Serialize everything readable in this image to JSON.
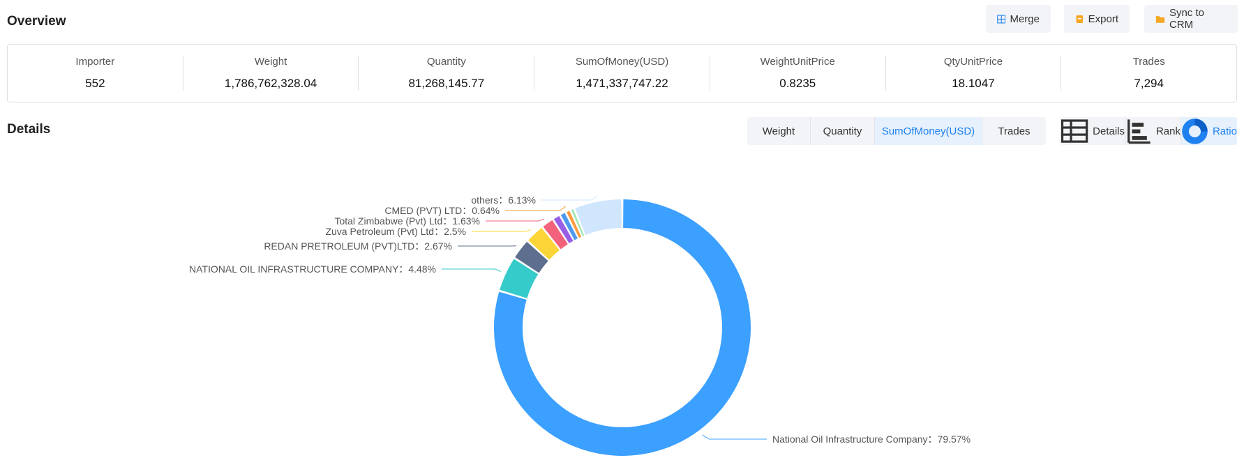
{
  "overview": {
    "title": "Overview",
    "buttons": {
      "merge": "Merge",
      "export": "Export",
      "sync": "Sync to CRM"
    },
    "stats": [
      {
        "label": "Importer",
        "value": "552"
      },
      {
        "label": "Weight",
        "value": "1,786,762,328.04"
      },
      {
        "label": "Quantity",
        "value": "81,268,145.77"
      },
      {
        "label": "SumOfMoney(USD)",
        "value": "1,471,337,747.22"
      },
      {
        "label": "WeightUnitPrice",
        "value": "0.8235"
      },
      {
        "label": "QtyUnitPrice",
        "value": "18.1047"
      },
      {
        "label": "Trades",
        "value": "7,294"
      }
    ]
  },
  "details": {
    "title": "Details",
    "metric_tabs": [
      "Weight",
      "Quantity",
      "SumOfMoney(USD)",
      "Trades"
    ],
    "active_metric": "SumOfMoney(USD)",
    "view_tabs": [
      "Details",
      "Rank",
      "Ratio"
    ],
    "active_view": "Ratio"
  },
  "colors": {
    "accent": "#1f80f0",
    "button_bg": "#f2f4f7",
    "active_bg": "#e6f1fd"
  },
  "chart_data": {
    "type": "pie",
    "donut": true,
    "slices": [
      {
        "name": "National Oil Infrastructure Company",
        "value": 79.57,
        "label": "National Oil Infrastructure Company：79.57%",
        "color": "#3ba0ff"
      },
      {
        "name": "NATIONAL OIL INFRASTRUCTURE COMPANY",
        "value": 4.48,
        "label": "NATIONAL OIL INFRASTRUCTURE COMPANY：4.48%",
        "color": "#36cbcb"
      },
      {
        "name": "REDAN PRETROLEUM (PVT)LTD",
        "value": 2.67,
        "label": "REDAN PRETROLEUM (PVT)LTD：2.67%",
        "color": "#5d6e8f"
      },
      {
        "name": "Zuva Petroleum (Pvt) Ltd",
        "value": 2.5,
        "label": "Zuva Petroleum (Pvt) Ltd：2.5%",
        "color": "#fbd437"
      },
      {
        "name": "Total Zimbabwe (Pvt) Ltd",
        "value": 1.63,
        "label": "Total Zimbabwe (Pvt) Ltd：1.63%",
        "color": "#f2637b"
      },
      {
        "name": "",
        "value": 1.0,
        "label": "",
        "color": "#975fe5"
      },
      {
        "name": "",
        "value": 0.8,
        "label": "",
        "color": "#4e9af0"
      },
      {
        "name": "CMED (PVT) LTD",
        "value": 0.64,
        "label": "CMED (PVT) LTD：0.64%",
        "color": "#fb9a3c"
      },
      {
        "name": "",
        "value": 0.5,
        "label": "",
        "color": "#9ee6b3"
      },
      {
        "name": "others",
        "value": 6.13,
        "label": "others：6.13%",
        "color": "#d0e6fd"
      }
    ]
  }
}
